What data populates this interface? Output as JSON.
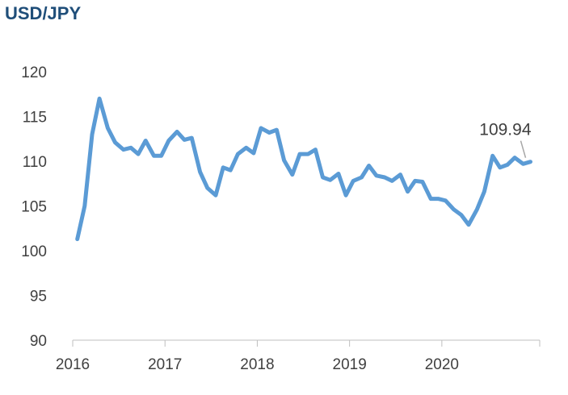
{
  "chart_data": {
    "type": "line",
    "title": "USD/JPY",
    "xlabel": "",
    "ylabel": "",
    "ylim": [
      90,
      120
    ],
    "xlim": [
      2016,
      2021
    ],
    "grid": false,
    "legend": "none",
    "yticks": [
      "90",
      "95",
      "100",
      "105",
      "110",
      "115",
      "120"
    ],
    "xticks": [
      "2016",
      "2017",
      "2018",
      "2019",
      "2020"
    ],
    "annotation": {
      "text": "109.94",
      "value": 109.94
    },
    "series": [
      {
        "color": "#5b9bd5",
        "x": [
          2016.05,
          2016.13,
          2016.21,
          2016.29,
          2016.38,
          2016.46,
          2016.55,
          2016.63,
          2016.71,
          2016.79,
          2016.88,
          2016.96,
          2017.04,
          2017.13,
          2017.21,
          2017.29,
          2017.38,
          2017.46,
          2017.55,
          2017.63,
          2017.71,
          2017.79,
          2017.88,
          2017.96,
          2018.04,
          2018.13,
          2018.21,
          2018.29,
          2018.38,
          2018.46,
          2018.55,
          2018.63,
          2018.71,
          2018.79,
          2018.88,
          2018.96,
          2019.04,
          2019.13,
          2019.21,
          2019.29,
          2019.38,
          2019.46,
          2019.55,
          2019.63,
          2019.71,
          2019.79,
          2019.88,
          2019.96,
          2020.04,
          2020.13,
          2020.21,
          2020.29,
          2020.38,
          2020.46,
          2020.55,
          2020.63,
          2020.71,
          2020.79,
          2020.88,
          2020.96
        ],
        "y": [
          101.3,
          105.0,
          113.0,
          117.0,
          113.7,
          112.1,
          111.3,
          111.5,
          110.8,
          112.3,
          110.6,
          110.6,
          112.3,
          113.3,
          112.4,
          112.6,
          108.8,
          107.0,
          106.2,
          109.3,
          109.0,
          110.8,
          111.5,
          110.9,
          113.7,
          113.2,
          113.5,
          110.1,
          108.5,
          110.8,
          110.8,
          111.3,
          108.2,
          107.9,
          108.6,
          106.2,
          107.8,
          108.2,
          109.5,
          108.4,
          108.2,
          107.8,
          108.5,
          106.6,
          107.8,
          107.7,
          105.8,
          105.8,
          105.6,
          104.6,
          104.0,
          102.9,
          104.6,
          106.6,
          110.6,
          109.3,
          109.6,
          110.4,
          109.7,
          109.94
        ]
      }
    ]
  }
}
